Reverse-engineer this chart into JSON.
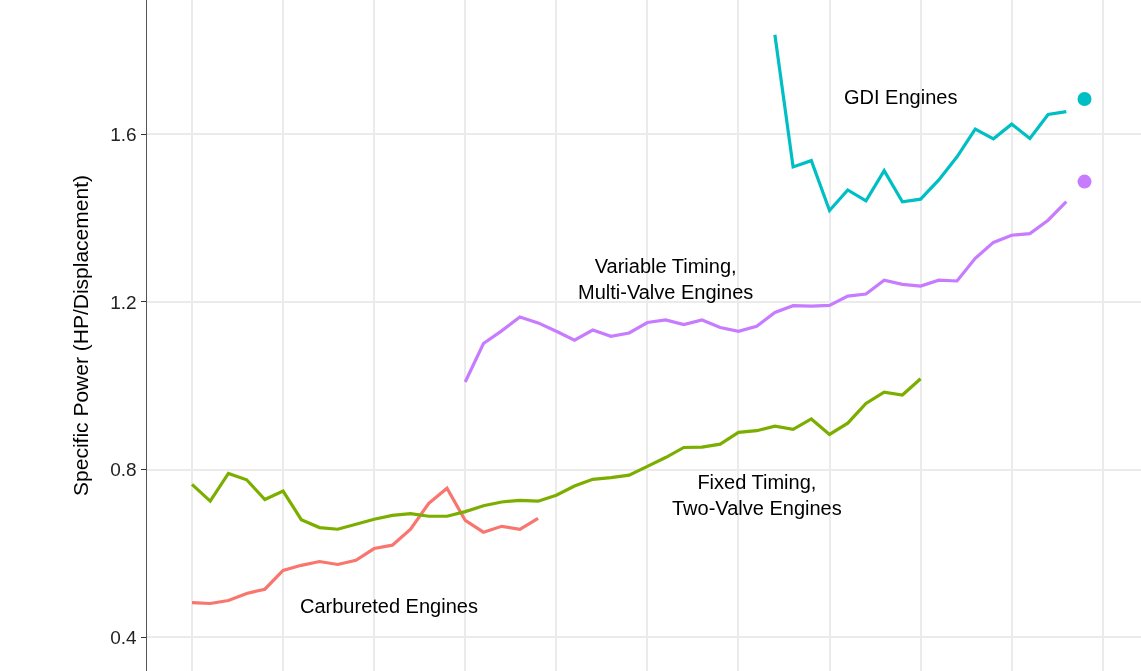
{
  "chart_data": {
    "type": "line",
    "ylabel": "Specific Power (HP/Displacement)",
    "categories": [
      null,
      null,
      null,
      null,
      null,
      null,
      null,
      null,
      null,
      null,
      null,
      null,
      null,
      null,
      null,
      null,
      null,
      null,
      null,
      null,
      null,
      null,
      null,
      null,
      null,
      null,
      null,
      null,
      null,
      null,
      null,
      null,
      null,
      null,
      null,
      null,
      null,
      null,
      null,
      null,
      null,
      null,
      null,
      null,
      null,
      null,
      null,
      null,
      null,
      null,
      null
    ],
    "ylim": [
      0.32,
      1.92
    ],
    "yticks": [
      0.4,
      0.8,
      1.2,
      1.6
    ],
    "grid": true,
    "tick_labels": "y",
    "legend": false,
    "line_style": "solid",
    "series": [
      {
        "name": "Carbureted Engines",
        "color": "#f8766d",
        "values": [
          0.483,
          0.481,
          0.488,
          0.505,
          0.515,
          0.56,
          0.572,
          0.581,
          0.574,
          0.584,
          0.612,
          0.62,
          0.658,
          0.72,
          0.756,
          0.679,
          0.651,
          0.665,
          0.658,
          0.684,
          null,
          null,
          null,
          null,
          null,
          null,
          null,
          null,
          null,
          null,
          null,
          null,
          null,
          null,
          null,
          null,
          null,
          null,
          null,
          null,
          null,
          null,
          null,
          null,
          null,
          null,
          null,
          null,
          null,
          null,
          null
        ]
      },
      {
        "name": "Fixed Timing,\nTwo-Valve Engines",
        "color": "#7cae00",
        "values": [
          0.765,
          0.725,
          0.791,
          0.776,
          0.729,
          0.749,
          0.681,
          0.662,
          0.658,
          0.67,
          0.682,
          0.691,
          0.695,
          0.689,
          0.689,
          0.7,
          0.714,
          0.723,
          0.727,
          0.725,
          0.739,
          0.761,
          0.777,
          0.781,
          0.787,
          0.808,
          0.829,
          0.853,
          0.854,
          0.861,
          0.889,
          0.893,
          0.904,
          0.896,
          0.921,
          0.884,
          0.911,
          0.958,
          0.985,
          0.978,
          1.017,
          null,
          null,
          null,
          null,
          null,
          null,
          null,
          null,
          null,
          null
        ]
      },
      {
        "name": "Variable Timing,\nMulti-Valve Engines",
        "color": "#c77cff",
        "values": [
          null,
          null,
          null,
          null,
          null,
          null,
          null,
          null,
          null,
          null,
          null,
          null,
          null,
          null,
          null,
          1.009,
          1.101,
          1.131,
          1.164,
          1.15,
          1.13,
          1.109,
          1.133,
          1.118,
          1.126,
          1.151,
          1.157,
          1.146,
          1.157,
          1.139,
          1.13,
          1.142,
          1.175,
          1.191,
          1.19,
          1.192,
          1.214,
          1.219,
          1.252,
          1.242,
          1.238,
          1.252,
          1.25,
          1.304,
          1.342,
          1.359,
          1.363,
          1.395,
          1.439,
          null,
          null
        ]
      },
      {
        "name": "GDI Engines",
        "color": "#00bfc4",
        "values": [
          null,
          null,
          null,
          null,
          null,
          null,
          null,
          null,
          null,
          null,
          null,
          null,
          null,
          null,
          null,
          null,
          null,
          null,
          null,
          null,
          null,
          null,
          null,
          null,
          null,
          null,
          null,
          null,
          null,
          null,
          null,
          null,
          1.837,
          1.522,
          1.537,
          1.418,
          1.467,
          1.441,
          1.513,
          1.439,
          1.445,
          1.491,
          1.546,
          1.612,
          1.589,
          1.624,
          1.59,
          1.647,
          1.654,
          null,
          null
        ]
      },
      {
        "type": "scatter",
        "marker": "circle",
        "color": "#c77cff",
        "values": [
          null,
          null,
          null,
          null,
          null,
          null,
          null,
          null,
          null,
          null,
          null,
          null,
          null,
          null,
          null,
          null,
          null,
          null,
          null,
          null,
          null,
          null,
          null,
          null,
          null,
          null,
          null,
          null,
          null,
          null,
          null,
          null,
          null,
          null,
          null,
          null,
          null,
          null,
          null,
          null,
          null,
          null,
          null,
          null,
          null,
          null,
          null,
          null,
          null,
          1.487,
          null
        ]
      },
      {
        "type": "scatter",
        "marker": "circle",
        "color": "#00bfc4",
        "values": [
          null,
          null,
          null,
          null,
          null,
          null,
          null,
          null,
          null,
          null,
          null,
          null,
          null,
          null,
          null,
          null,
          null,
          null,
          null,
          null,
          null,
          null,
          null,
          null,
          null,
          null,
          null,
          null,
          null,
          null,
          null,
          null,
          null,
          null,
          null,
          null,
          null,
          null,
          null,
          null,
          null,
          null,
          null,
          null,
          null,
          null,
          null,
          null,
          null,
          1.684,
          null
        ]
      }
    ]
  }
}
